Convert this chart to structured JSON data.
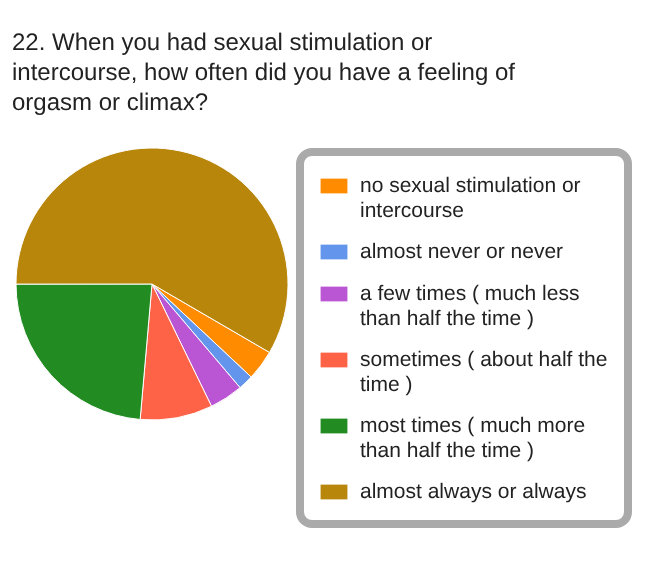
{
  "chart_data": {
    "type": "pie",
    "title": "22. When you had sexual stimulation or intercourse, how often did you have a feeling of orgasm or climax?",
    "categories": [
      "no sexual stimulation or intercourse",
      "almost never or never",
      "a few times ( much less than half the time )",
      "sometimes ( about half the time )",
      "most times ( much more than half the time )",
      "almost always or always"
    ],
    "values": [
      3.6,
      1.8,
      4.0,
      8.6,
      23.6,
      58.4
    ],
    "colors": [
      "#ff8c00",
      "#6495ed",
      "#ba55d3",
      "#ff6347",
      "#228b22",
      "#b8860b"
    ],
    "legend": "right"
  }
}
